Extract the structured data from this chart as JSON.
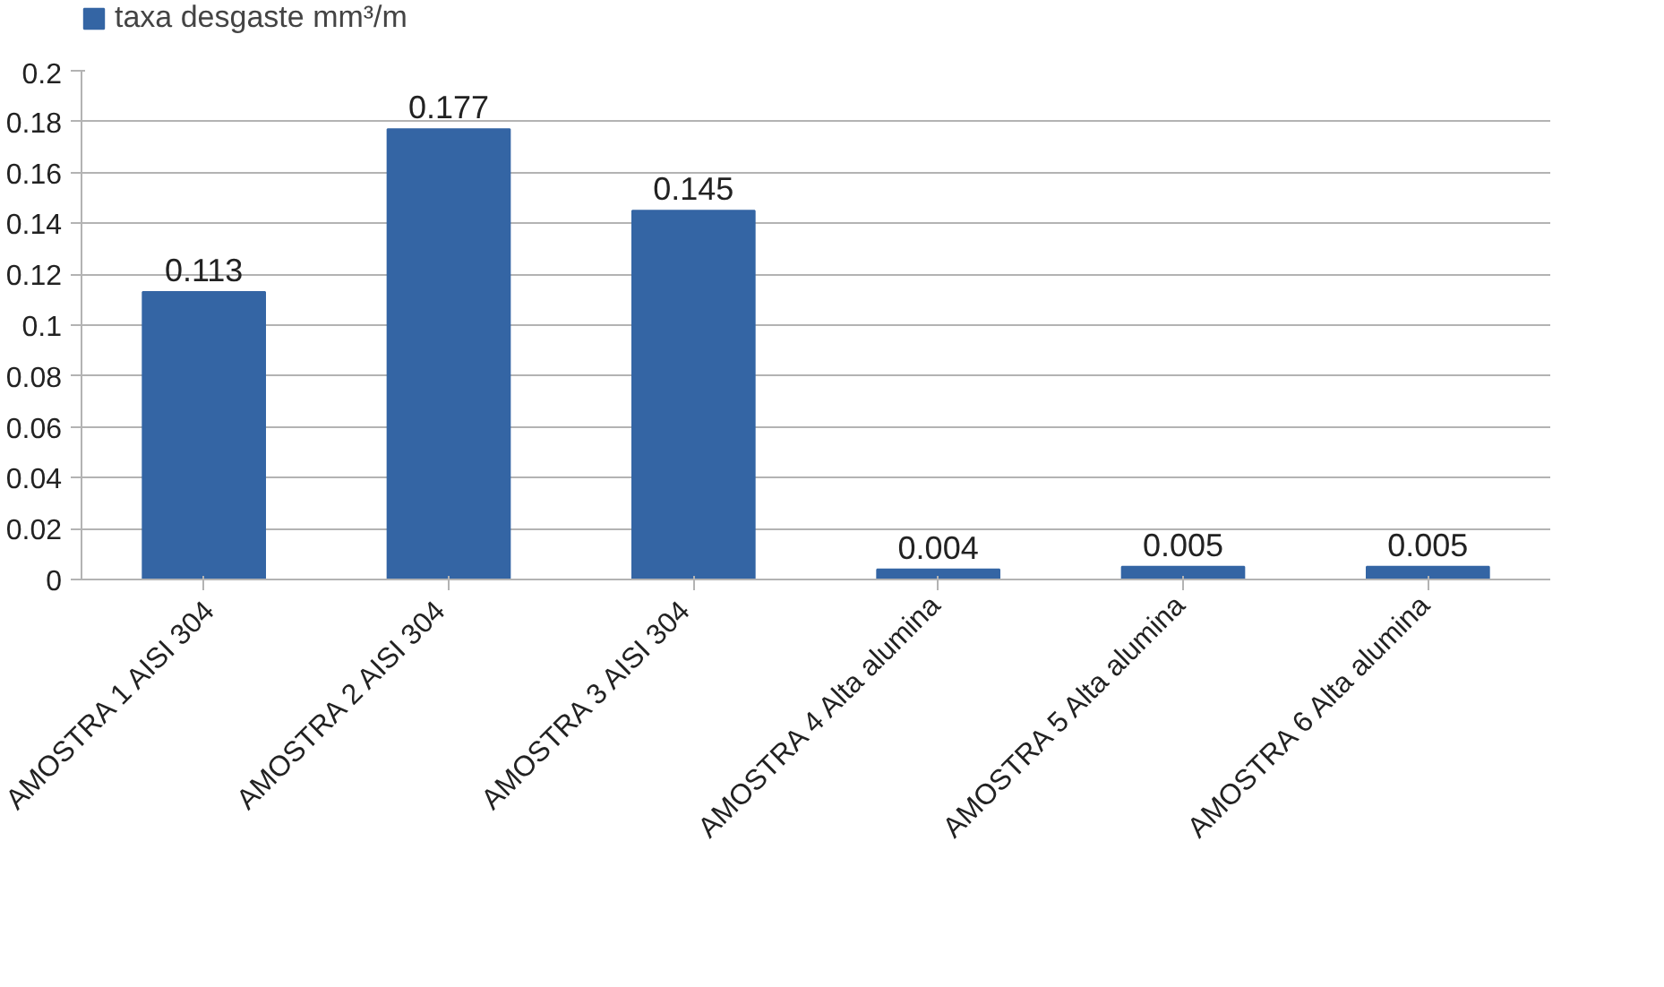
{
  "chart_data": {
    "type": "bar",
    "categories": [
      "AMOSTRA 1 AISI  304",
      "AMOSTRA 2 AISI  304",
      "AMOSTRA 3 AISI  304",
      "AMOSTRA 4 Alta alumina",
      "AMOSTRA 5 Alta alumina",
      "AMOSTRA 6 Alta alumina"
    ],
    "series": [
      {
        "name": "taxa desgaste mm³/m",
        "color": "#3465a4",
        "values": [
          0.113,
          0.177,
          0.145,
          0.004,
          0.005,
          0.005
        ]
      }
    ],
    "ylim": [
      0,
      0.2
    ],
    "yticks": [
      0,
      0.02,
      0.04,
      0.06,
      0.08,
      0.1,
      0.12,
      0.14,
      0.16,
      0.18,
      0.2
    ],
    "grid": "y",
    "legend": "top left",
    "data_labels": true
  }
}
